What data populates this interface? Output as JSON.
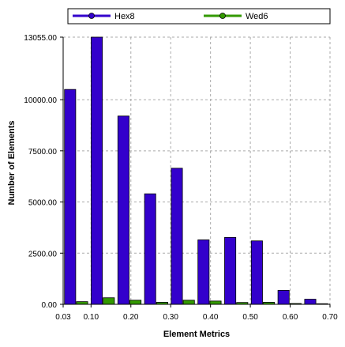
{
  "chart_data": {
    "type": "bar",
    "title": "",
    "xlabel": "Element Metrics",
    "ylabel": "Number of Elements",
    "ylim": [
      0,
      13055
    ],
    "xlim": [
      0.03,
      0.7
    ],
    "ytick_labels": [
      "0.00",
      "2500.00",
      "5000.00",
      "7500.00",
      "10000.00",
      "13055.00"
    ],
    "ytick_values": [
      0,
      2500,
      5000,
      7500,
      10000,
      13055
    ],
    "xtick_labels": [
      "0.03",
      "0.10",
      "0.20",
      "0.30",
      "0.40",
      "0.50",
      "0.60",
      "0.70"
    ],
    "xtick_values": [
      0.03,
      0.1,
      0.2,
      0.3,
      0.4,
      0.5,
      0.6,
      0.7
    ],
    "grid": true,
    "legend_position": "top",
    "bin_width": 0.067,
    "categories": [
      0.0635,
      0.1305,
      0.1975,
      0.2645,
      0.3315,
      0.3985,
      0.4655,
      0.5325,
      0.5995,
      0.6665
    ],
    "series": [
      {
        "name": "Hex8",
        "color": "#3300cc",
        "values": [
          10500,
          13055,
          9200,
          5400,
          6650,
          3150,
          3270,
          3100,
          680,
          250
        ]
      },
      {
        "name": "Wed6",
        "color": "#339900",
        "values": [
          130,
          320,
          200,
          100,
          200,
          160,
          90,
          100,
          40,
          30
        ]
      }
    ]
  }
}
